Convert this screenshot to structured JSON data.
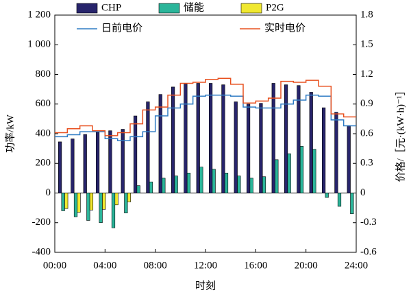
{
  "chart_data": {
    "type": "bar_line",
    "xlabel": "时刻",
    "ylabel": "功率/kW",
    "y2label": "价格/［元·(kW·h)⁻¹］",
    "categories": [
      "0",
      "1",
      "2",
      "3",
      "4",
      "5",
      "6",
      "7",
      "8",
      "9",
      "10",
      "11",
      "12",
      "13",
      "14",
      "15",
      "16",
      "17",
      "18",
      "19",
      "20",
      "21",
      "22",
      "23"
    ],
    "xlim": [
      0,
      24
    ],
    "xticks": [
      {
        "value": 0,
        "label": "00:00"
      },
      {
        "value": 4,
        "label": "04:00"
      },
      {
        "value": 8,
        "label": "08:00"
      },
      {
        "value": 12,
        "label": "12:00"
      },
      {
        "value": 16,
        "label": "16:00"
      },
      {
        "value": 20,
        "label": "20:00"
      },
      {
        "value": 24,
        "label": "24:00"
      }
    ],
    "ylim": [
      -400,
      1200
    ],
    "yticks": [
      -400,
      -200,
      0,
      200,
      400,
      600,
      800,
      {
        "value": 1000,
        "label": "1 000"
      },
      {
        "value": 1200,
        "label": "1 200"
      }
    ],
    "y2lim": [
      -0.6,
      1.8
    ],
    "y2ticks": [
      -0.6,
      -0.3,
      0,
      0.3,
      0.6,
      0.9,
      1.2,
      1.5,
      1.8
    ],
    "series": [
      {
        "name": "CHP",
        "color": "#27246b",
        "kind": "bar",
        "values": [
          345,
          365,
          395,
          410,
          420,
          430,
          520,
          615,
          665,
          715,
          735,
          740,
          740,
          730,
          615,
          600,
          605,
          740,
          730,
          725,
          680,
          575,
          545,
          455
        ]
      },
      {
        "name": "储能",
        "color": "#2bb59a",
        "kind": "bar",
        "values": [
          -120,
          -160,
          -185,
          -200,
          -235,
          -135,
          50,
          75,
          100,
          115,
          135,
          175,
          160,
          135,
          115,
          100,
          110,
          225,
          265,
          315,
          295,
          -30,
          -90,
          -140
        ]
      },
      {
        "name": "P2G",
        "color": "#f0e830",
        "kind": "bar",
        "values": [
          -105,
          -130,
          -115,
          -110,
          -80,
          -60,
          0,
          0,
          0,
          0,
          0,
          0,
          0,
          0,
          0,
          0,
          0,
          0,
          0,
          0,
          0,
          0,
          0,
          0
        ]
      },
      {
        "name": "日前电价",
        "color": "#2e7bc4",
        "kind": "step",
        "axis": "y2",
        "values": [
          0.57,
          0.59,
          0.62,
          0.62,
          0.55,
          0.53,
          0.57,
          0.62,
          0.78,
          0.86,
          0.9,
          0.98,
          0.99,
          0.99,
          0.98,
          0.87,
          0.86,
          0.86,
          0.9,
          0.94,
          0.99,
          0.98,
          0.74,
          0.68
        ]
      },
      {
        "name": "实时电价",
        "color": "#e8501f",
        "kind": "step",
        "axis": "y2",
        "values": [
          0.61,
          0.65,
          0.68,
          0.63,
          0.58,
          0.61,
          0.7,
          0.84,
          0.87,
          0.99,
          1.11,
          1.12,
          1.15,
          1.16,
          1.1,
          0.91,
          0.93,
          0.96,
          1.13,
          1.12,
          1.14,
          1.08,
          0.8,
          0.77
        ]
      }
    ]
  }
}
